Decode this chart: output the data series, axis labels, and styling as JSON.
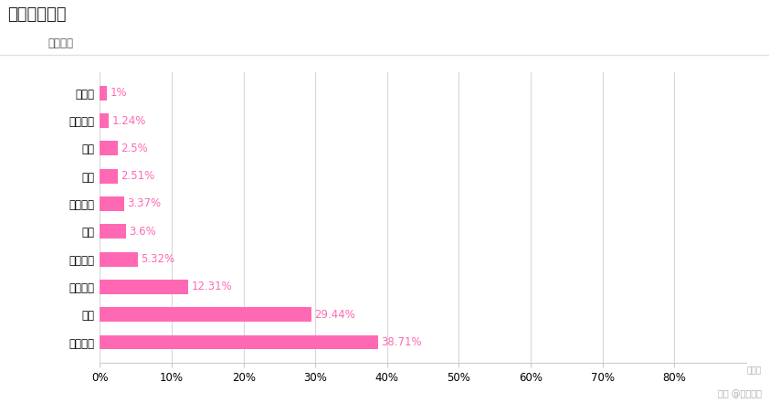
{
  "title": "就业行业分布",
  "y_axis_label": "就业行业",
  "categories": [
    "教育培训",
    "娱乐",
    "其他行业",
    "餐饮娱乐",
    "广告",
    "金融投资",
    "服装",
    "媒体",
    "批发零售",
    "互联网"
  ],
  "values": [
    38.71,
    29.44,
    12.31,
    5.32,
    3.6,
    3.37,
    2.51,
    2.5,
    1.24,
    1.0
  ],
  "labels": [
    "38.71%",
    "29.44%",
    "12.31%",
    "5.32%",
    "3.6%",
    "3.37%",
    "2.51%",
    "2.5%",
    "1.24%",
    "1%"
  ],
  "bar_color": "#FF69B4",
  "background_color": "#ffffff",
  "xlim": [
    0,
    90
  ],
  "xticks": [
    0,
    10,
    20,
    30,
    40,
    50,
    60,
    70,
    80
  ],
  "xticklabels": [
    "0%",
    "10%",
    "20%",
    "30%",
    "40%",
    "50%",
    "60%",
    "70%",
    "80%"
  ],
  "title_fontsize": 13,
  "label_fontsize": 8.5,
  "tick_fontsize": 8.5,
  "watermark": "头条 @志愿工匠",
  "percent_label": "百分比"
}
